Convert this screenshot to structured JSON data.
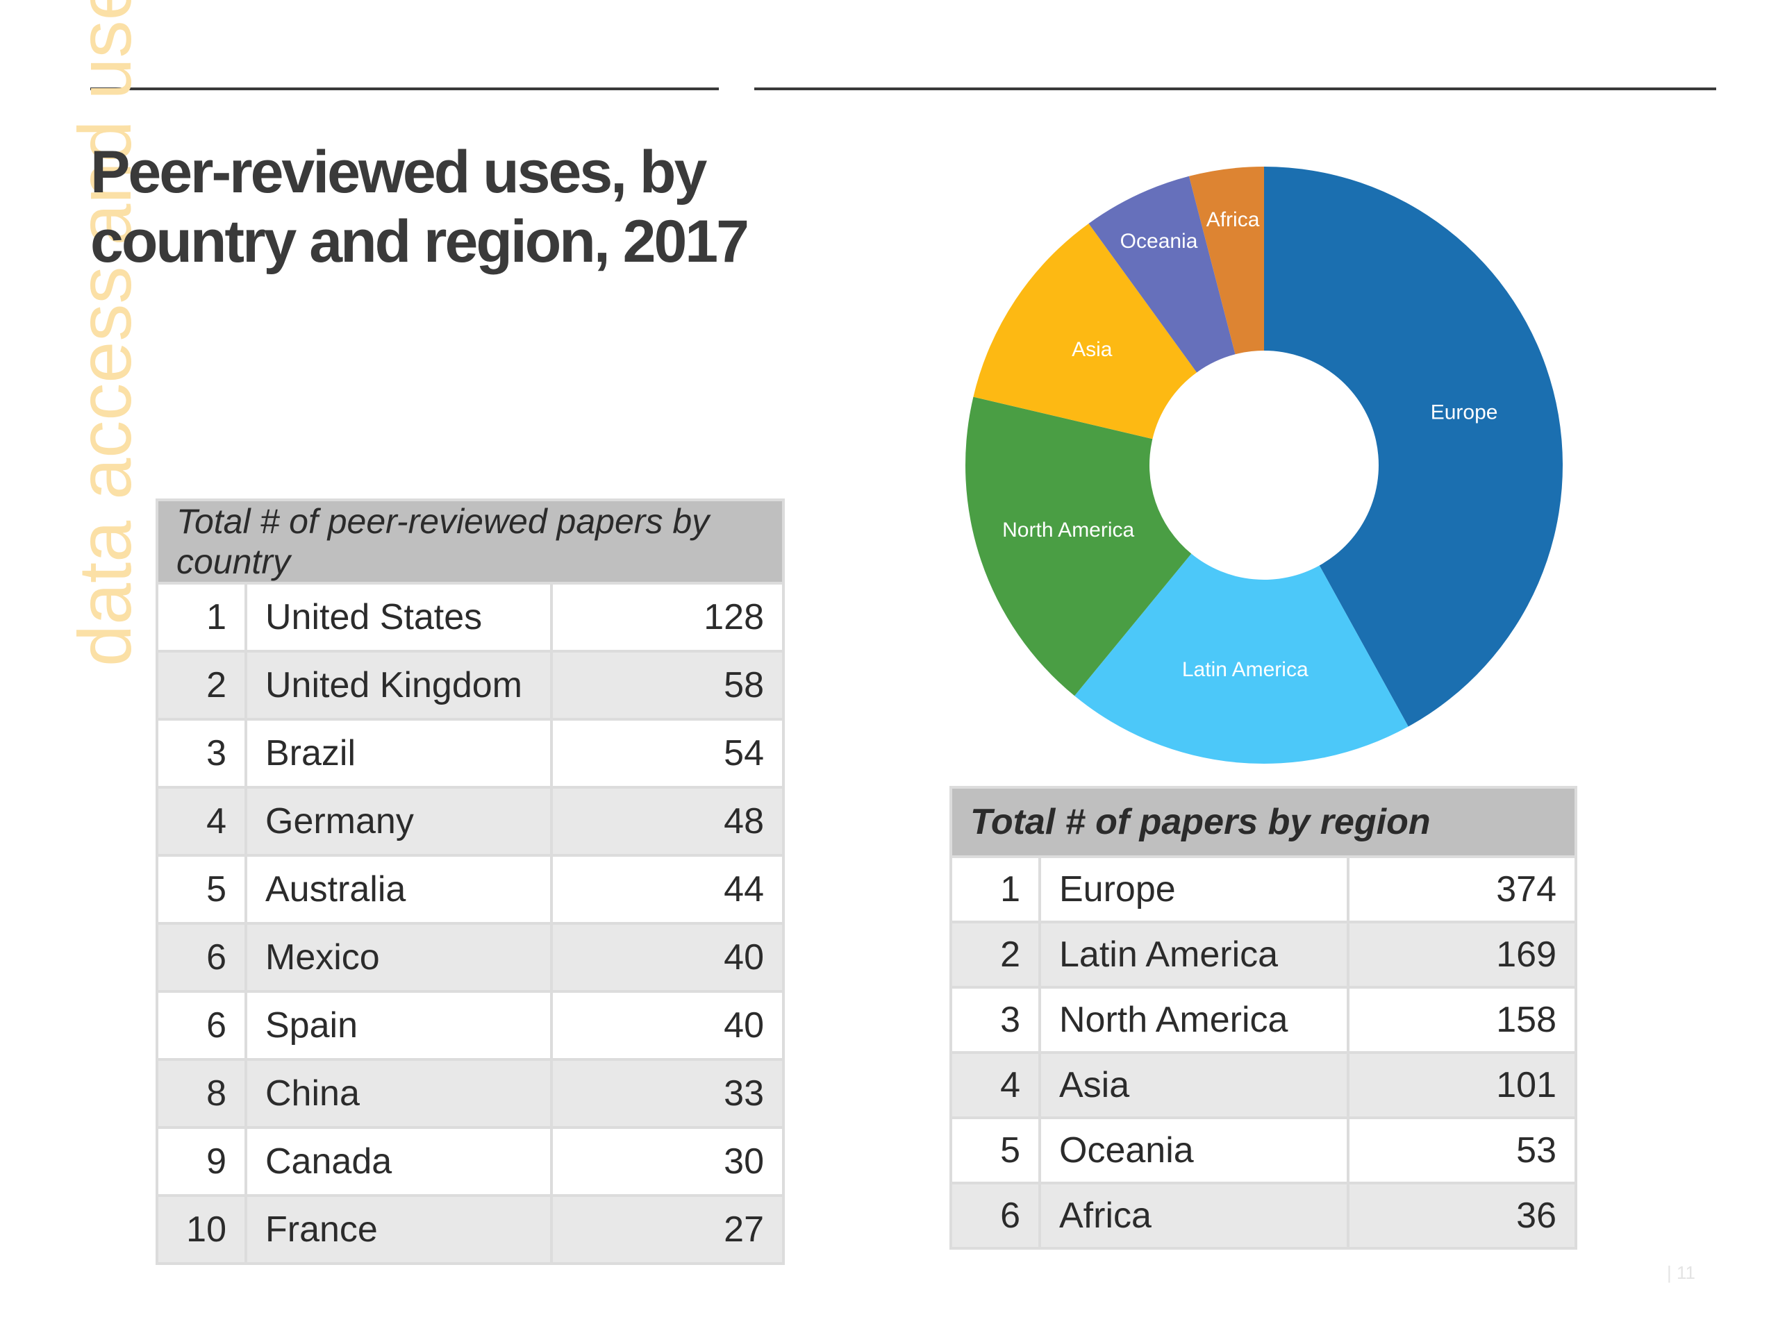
{
  "side_label": "data access and use",
  "title": "Peer-reviewed uses, by country and region, 2017",
  "country_table": {
    "header": "Total # of peer-reviewed papers by country",
    "rows": [
      {
        "rank": "1",
        "country": "United States",
        "value": "128"
      },
      {
        "rank": "2",
        "country": "United Kingdom",
        "value": "58"
      },
      {
        "rank": "3",
        "country": "Brazil",
        "value": "54"
      },
      {
        "rank": "4",
        "country": "Germany",
        "value": "48"
      },
      {
        "rank": "5",
        "country": "Australia",
        "value": "44"
      },
      {
        "rank": "6",
        "country": "Mexico",
        "value": "40"
      },
      {
        "rank": "6",
        "country": "Spain",
        "value": "40"
      },
      {
        "rank": "8",
        "country": "China",
        "value": "33"
      },
      {
        "rank": "9",
        "country": "Canada",
        "value": "30"
      },
      {
        "rank": "10",
        "country": "France",
        "value": "27"
      }
    ]
  },
  "region_table": {
    "header": "Total # of papers by region",
    "rows": [
      {
        "rank": "1",
        "region": "Europe",
        "value": "374"
      },
      {
        "rank": "2",
        "region": "Latin America",
        "value": "169"
      },
      {
        "rank": "3",
        "region": "North America",
        "value": "158"
      },
      {
        "rank": "4",
        "region": "Asia",
        "value": "101"
      },
      {
        "rank": "5",
        "region": "Oceania",
        "value": "53"
      },
      {
        "rank": "6",
        "region": "Africa",
        "value": "36"
      }
    ]
  },
  "chart_data": {
    "type": "pie",
    "variant": "donut",
    "title": "",
    "categories": [
      "Europe",
      "Latin America",
      "North America",
      "Asia",
      "Oceania",
      "Africa"
    ],
    "values": [
      374,
      169,
      158,
      101,
      53,
      36
    ],
    "colors": [
      "#1b6fb0",
      "#4cc8f9",
      "#4a9e44",
      "#fdb913",
      "#6670bb",
      "#dd8432"
    ],
    "start": "12 o'clock",
    "direction": "clockwise",
    "legend": "none"
  },
  "page_number": "| 11"
}
